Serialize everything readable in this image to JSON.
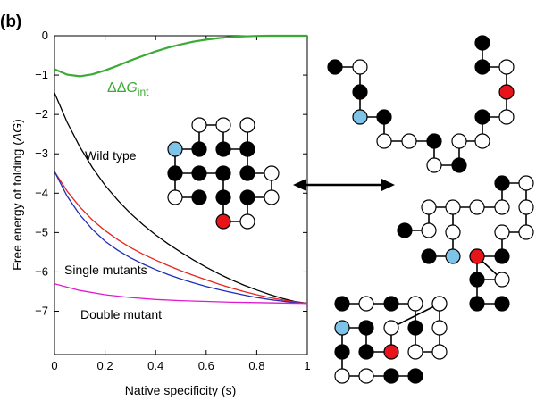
{
  "panel_label": "(b)",
  "chart_data": {
    "type": "line",
    "xlabel": "Native specificity (s)",
    "ylabel_text": "Free energy of folding (",
    "ylabel_symbol": "ΔG",
    "ylabel_close": ")",
    "xlim": [
      0,
      1
    ],
    "ylim": [
      -8.1,
      0
    ],
    "xticks": [
      "0",
      "0.2",
      "0.4",
      "0.6",
      "0.8",
      "1"
    ],
    "yticks": [
      "0",
      "−1",
      "−2",
      "−3",
      "−4",
      "−5",
      "−6",
      "−7"
    ],
    "grid": false,
    "series": [
      {
        "name": "Wild type",
        "color": "#000000",
        "x": [
          0,
          0.05,
          0.1,
          0.15,
          0.2,
          0.25,
          0.3,
          0.35,
          0.4,
          0.45,
          0.5,
          0.55,
          0.6,
          0.65,
          0.7,
          0.75,
          0.8,
          0.85,
          0.9,
          0.95,
          1
        ],
        "y": [
          -1.45,
          -2.2,
          -2.82,
          -3.35,
          -3.8,
          -4.18,
          -4.51,
          -4.8,
          -5.06,
          -5.29,
          -5.5,
          -5.7,
          -5.88,
          -6.05,
          -6.2,
          -6.34,
          -6.46,
          -6.57,
          -6.67,
          -6.75,
          -6.8
        ]
      },
      {
        "name": "Single mutants",
        "color": "#e8231e",
        "x": [
          0,
          0.05,
          0.1,
          0.15,
          0.2,
          0.25,
          0.3,
          0.35,
          0.4,
          0.45,
          0.5,
          0.55,
          0.6,
          0.65,
          0.7,
          0.75,
          0.8,
          0.85,
          0.9,
          0.95,
          1
        ],
        "y": [
          -3.45,
          -3.95,
          -4.35,
          -4.68,
          -4.95,
          -5.18,
          -5.38,
          -5.55,
          -5.7,
          -5.84,
          -5.97,
          -6.09,
          -6.2,
          -6.31,
          -6.41,
          -6.5,
          -6.58,
          -6.65,
          -6.71,
          -6.76,
          -6.8
        ]
      },
      {
        "name": "Single mutants",
        "color": "#1a2fb8",
        "x": [
          0,
          0.05,
          0.1,
          0.15,
          0.2,
          0.25,
          0.3,
          0.35,
          0.4,
          0.45,
          0.5,
          0.55,
          0.6,
          0.65,
          0.7,
          0.75,
          0.8,
          0.85,
          0.9,
          0.95,
          1
        ],
        "y": [
          -3.45,
          -4.08,
          -4.55,
          -4.92,
          -5.22,
          -5.45,
          -5.64,
          -5.8,
          -5.94,
          -6.07,
          -6.18,
          -6.28,
          -6.37,
          -6.45,
          -6.52,
          -6.59,
          -6.65,
          -6.7,
          -6.74,
          -6.78,
          -6.8
        ]
      },
      {
        "name": "Double mutant",
        "color": "#e01ad0",
        "x": [
          0,
          0.1,
          0.2,
          0.3,
          0.4,
          0.5,
          0.6,
          0.7,
          0.8,
          0.9,
          1
        ],
        "y": [
          -6.3,
          -6.47,
          -6.58,
          -6.65,
          -6.7,
          -6.73,
          -6.75,
          -6.77,
          -6.78,
          -6.79,
          -6.8
        ]
      },
      {
        "name": "ΔΔG_int",
        "color": "#3aaa35",
        "x": [
          0,
          0.05,
          0.1,
          0.15,
          0.2,
          0.25,
          0.3,
          0.35,
          0.4,
          0.45,
          0.5,
          0.55,
          0.6,
          0.65,
          0.7,
          0.75,
          0.8,
          0.85,
          0.9,
          0.95,
          1
        ],
        "y": [
          -0.85,
          -0.99,
          -1.03,
          -0.98,
          -0.88,
          -0.76,
          -0.63,
          -0.51,
          -0.4,
          -0.3,
          -0.22,
          -0.15,
          -0.1,
          -0.06,
          -0.03,
          -0.015,
          -0.005,
          0,
          0,
          0,
          0
        ]
      }
    ],
    "labels": {
      "wild_type": "Wild type",
      "single_mutants": "Single mutants",
      "double_mutant": "Double mutant",
      "ddg_prefix": "ΔΔ",
      "ddg_g": "G",
      "ddg_sub": "int"
    }
  },
  "lattice": {
    "colors": {
      "black": "#000000",
      "white": "#ffffff",
      "blue": "#7ec4e8",
      "red": "#e8141a"
    },
    "arrow_label": "",
    "structures": [
      "native fold",
      "unfolded chain",
      "misfolded chain",
      "alternative compact fold"
    ]
  }
}
